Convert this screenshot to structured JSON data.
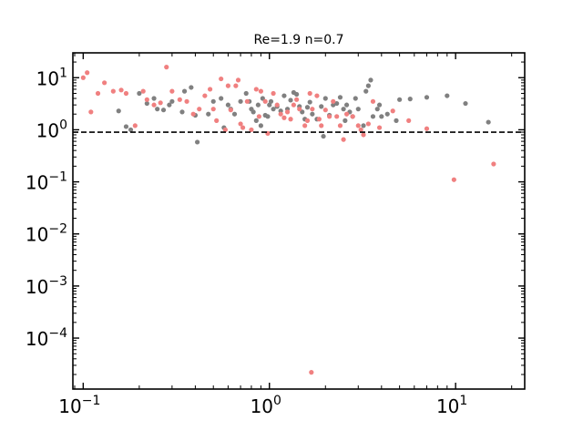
{
  "chart_data": {
    "type": "scatter",
    "title": "Re=1.9 n=0.7",
    "xlabel": "",
    "ylabel": "",
    "xscale": "log",
    "yscale": "log",
    "xlim": [
      0.088,
      23.5
    ],
    "ylim": [
      1.05e-05,
      30
    ],
    "x_ticks": [
      {
        "value": 0.1,
        "base": "10",
        "exp": "−1"
      },
      {
        "value": 1,
        "base": "10",
        "exp": "0"
      },
      {
        "value": 10,
        "base": "10",
        "exp": "1"
      }
    ],
    "y_ticks": [
      {
        "value": 10,
        "base": "10",
        "exp": "1"
      },
      {
        "value": 1,
        "base": "10",
        "exp": "0"
      },
      {
        "value": 0.1,
        "base": "10",
        "exp": "−1"
      },
      {
        "value": 0.01,
        "base": "10",
        "exp": "−2"
      },
      {
        "value": 0.001,
        "base": "10",
        "exp": "−3"
      },
      {
        "value": 0.0001,
        "base": "10",
        "exp": "−4"
      }
    ],
    "reference_line": {
      "y": 0.9,
      "style": "dashed",
      "color": "#000000"
    },
    "grid": false,
    "series": [
      {
        "color": "#808080",
        "points": [
          [
            0.155,
            2.3
          ],
          [
            0.17,
            1.15
          ],
          [
            0.18,
            1.0
          ],
          [
            0.2,
            5.0
          ],
          [
            0.22,
            3.2
          ],
          [
            0.24,
            4.0
          ],
          [
            0.25,
            2.5
          ],
          [
            0.27,
            2.4
          ],
          [
            0.29,
            3.0
          ],
          [
            0.3,
            3.5
          ],
          [
            0.34,
            2.2
          ],
          [
            0.35,
            5.5
          ],
          [
            0.38,
            6.5
          ],
          [
            0.4,
            1.9
          ],
          [
            0.41,
            0.58
          ],
          [
            0.47,
            2.0
          ],
          [
            0.5,
            3.5
          ],
          [
            0.55,
            4.0
          ],
          [
            0.57,
            1.1
          ],
          [
            0.6,
            3.0
          ],
          [
            0.62,
            2.5
          ],
          [
            0.65,
            2.0
          ],
          [
            0.7,
            3.5
          ],
          [
            0.75,
            5.0
          ],
          [
            0.78,
            3.5
          ],
          [
            0.8,
            2.5
          ],
          [
            0.82,
            2.2
          ],
          [
            0.85,
            1.5
          ],
          [
            0.87,
            3.0
          ],
          [
            0.9,
            1.2
          ],
          [
            0.92,
            4.0
          ],
          [
            0.95,
            1.9
          ],
          [
            0.98,
            1.8
          ],
          [
            1.0,
            3.0
          ],
          [
            1.02,
            3.5
          ],
          [
            1.05,
            2.5
          ],
          [
            1.1,
            2.8
          ],
          [
            1.15,
            2.3
          ],
          [
            1.2,
            4.5
          ],
          [
            1.25,
            2.5
          ],
          [
            1.3,
            3.7
          ],
          [
            1.35,
            5.2
          ],
          [
            1.4,
            4.8
          ],
          [
            1.45,
            2.8
          ],
          [
            1.5,
            2.2
          ],
          [
            1.55,
            1.6
          ],
          [
            1.6,
            2.7
          ],
          [
            1.65,
            3.4
          ],
          [
            1.7,
            2.0
          ],
          [
            1.8,
            1.6
          ],
          [
            1.9,
            2.8
          ],
          [
            1.95,
            0.75
          ],
          [
            2.0,
            4.0
          ],
          [
            2.1,
            1.9
          ],
          [
            2.2,
            3.0
          ],
          [
            2.3,
            3.2
          ],
          [
            2.4,
            4.2
          ],
          [
            2.5,
            2.5
          ],
          [
            2.55,
            1.5
          ],
          [
            2.6,
            3.0
          ],
          [
            2.7,
            2.2
          ],
          [
            2.8,
            1.8
          ],
          [
            2.9,
            4.0
          ],
          [
            3.0,
            2.5
          ],
          [
            3.2,
            1.2
          ],
          [
            3.3,
            5.5
          ],
          [
            3.4,
            7.0
          ],
          [
            3.5,
            9.0
          ],
          [
            3.6,
            1.8
          ],
          [
            3.8,
            2.5
          ],
          [
            3.9,
            3.0
          ],
          [
            4.0,
            1.8
          ],
          [
            4.3,
            2.0
          ],
          [
            4.8,
            1.5
          ],
          [
            5.0,
            3.8
          ],
          [
            5.7,
            3.9
          ],
          [
            7.0,
            4.2
          ],
          [
            9.0,
            4.5
          ],
          [
            11.3,
            3.2
          ],
          [
            15.0,
            1.4
          ]
        ]
      },
      {
        "color": "#f08080",
        "points": [
          [
            0.1,
            10.0
          ],
          [
            0.105,
            12.5
          ],
          [
            0.11,
            2.2
          ],
          [
            0.12,
            5.0
          ],
          [
            0.13,
            8.0
          ],
          [
            0.145,
            5.5
          ],
          [
            0.16,
            5.8
          ],
          [
            0.17,
            5.0
          ],
          [
            0.19,
            1.2
          ],
          [
            0.21,
            5.5
          ],
          [
            0.22,
            3.8
          ],
          [
            0.24,
            3.0
          ],
          [
            0.26,
            3.3
          ],
          [
            0.28,
            16.0
          ],
          [
            0.3,
            5.5
          ],
          [
            0.33,
            3.8
          ],
          [
            0.36,
            3.5
          ],
          [
            0.39,
            2.0
          ],
          [
            0.42,
            2.5
          ],
          [
            0.45,
            4.5
          ],
          [
            0.48,
            6.0
          ],
          [
            0.5,
            2.5
          ],
          [
            0.52,
            1.5
          ],
          [
            0.55,
            9.5
          ],
          [
            0.58,
            1.0
          ],
          [
            0.6,
            7.0
          ],
          [
            0.62,
            2.4
          ],
          [
            0.66,
            7.0
          ],
          [
            0.68,
            9.0
          ],
          [
            0.7,
            1.3
          ],
          [
            0.72,
            1.1
          ],
          [
            0.76,
            3.5
          ],
          [
            0.8,
            1.0
          ],
          [
            0.85,
            6.0
          ],
          [
            0.88,
            1.8
          ],
          [
            0.9,
            5.5
          ],
          [
            0.95,
            3.5
          ],
          [
            0.98,
            0.85
          ],
          [
            1.05,
            5.0
          ],
          [
            1.1,
            3.0
          ],
          [
            1.15,
            2.0
          ],
          [
            1.2,
            1.7
          ],
          [
            1.25,
            2.2
          ],
          [
            1.3,
            1.6
          ],
          [
            1.35,
            3.0
          ],
          [
            1.4,
            3.8
          ],
          [
            1.45,
            2.5
          ],
          [
            1.55,
            1.2
          ],
          [
            1.6,
            1.5
          ],
          [
            1.65,
            5.0
          ],
          [
            1.68,
            2.2e-05
          ],
          [
            1.7,
            2.5
          ],
          [
            1.8,
            4.5
          ],
          [
            1.85,
            1.6
          ],
          [
            1.9,
            1.2
          ],
          [
            2.0,
            2.4
          ],
          [
            2.1,
            1.8
          ],
          [
            2.2,
            3.5
          ],
          [
            2.3,
            1.8
          ],
          [
            2.4,
            1.2
          ],
          [
            2.5,
            0.65
          ],
          [
            2.6,
            2.0
          ],
          [
            2.8,
            1.8
          ],
          [
            3.0,
            1.2
          ],
          [
            3.1,
            1.0
          ],
          [
            3.2,
            0.8
          ],
          [
            3.4,
            1.3
          ],
          [
            3.6,
            3.5
          ],
          [
            3.9,
            1.1
          ],
          [
            4.6,
            2.3
          ],
          [
            5.6,
            1.5
          ],
          [
            7.0,
            1.05
          ],
          [
            9.8,
            0.11
          ],
          [
            16.0,
            0.22
          ]
        ]
      }
    ]
  }
}
